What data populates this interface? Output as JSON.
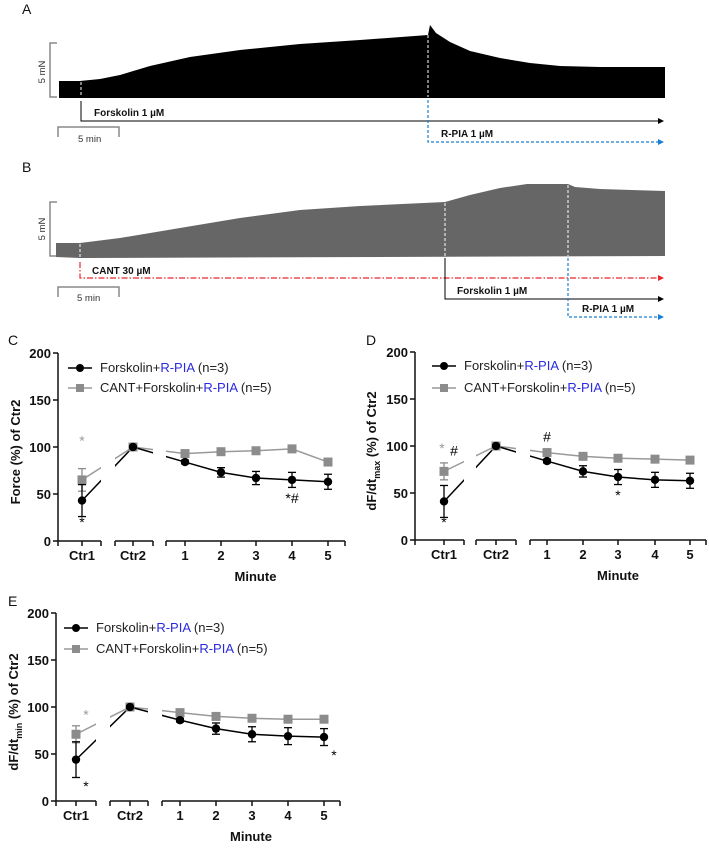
{
  "traces": {
    "A": {
      "panel_label": "A",
      "scale_force": "5 mN",
      "scale_time": "5 min",
      "forskolin_label": "Forskolin 1 µM",
      "rpia_label": "R-PIA 1 µM",
      "trace_color": "#000000"
    },
    "B": {
      "panel_label": "B",
      "scale_force": "5 mN",
      "scale_time": "5 min",
      "cant_label": "CANT 30 µM",
      "forskolin_label": "Forskolin 1 µM",
      "rpia_label": "R-PIA 1 µM",
      "trace_color": "#666666"
    },
    "colors": {
      "forskolin": "#000000",
      "rpia": "#1a7fd0",
      "cant": "#e8262a"
    }
  },
  "chart_data": [
    {
      "panel_label": "C",
      "type": "line",
      "ylabel_main": "Force (%) of Ctr2",
      "ylabel_sub": "",
      "ylabel_rest": "",
      "xlabel": "Minute",
      "categories": [
        "Ctr1",
        "Ctr2",
        "1",
        "2",
        "3",
        "4",
        "5"
      ],
      "yticks": [
        "0",
        "50",
        "100",
        "150",
        "200"
      ],
      "ylim": [
        0,
        200
      ],
      "series": [
        {
          "name_parts": [
            "Forskolin+",
            "R-PIA",
            " (n=3)"
          ],
          "color": "#000000",
          "marker": "circle",
          "values": [
            43,
            100,
            84,
            73,
            67,
            65,
            63
          ],
          "errors": [
            17,
            0,
            2,
            5,
            7,
            8,
            8
          ]
        },
        {
          "name_parts": [
            "CANT+Forskolin+",
            "R-PIA",
            " (n=5)"
          ],
          "color": "#8c8c8c",
          "marker": "square",
          "values": [
            65,
            100,
            93,
            95,
            96,
            98,
            84
          ],
          "errors": [
            12,
            0,
            2,
            2,
            2,
            2,
            3
          ]
        }
      ],
      "legend_highlight_color": "#2a2ae0",
      "annotations": [
        {
          "category": 0,
          "y": 107,
          "text": "*",
          "color": "#999999"
        },
        {
          "category": 0,
          "y": 20,
          "text": "*",
          "color": "#000000"
        },
        {
          "category": 5,
          "y": 46,
          "text": "*#",
          "color": "#000000"
        }
      ]
    },
    {
      "panel_label": "D",
      "type": "line",
      "ylabel_main": "dF/dt",
      "ylabel_sub": "max",
      "ylabel_rest": " (%) of Ctr2",
      "xlabel": "Minute",
      "categories": [
        "Ctr1",
        "Ctr2",
        "1",
        "2",
        "3",
        "4",
        "5"
      ],
      "yticks": [
        "0",
        "50",
        "100",
        "150",
        "200"
      ],
      "ylim": [
        0,
        200
      ],
      "series": [
        {
          "name_parts": [
            "Forskolin+",
            "R-PIA",
            " (n=3)"
          ],
          "color": "#000000",
          "marker": "circle",
          "values": [
            41,
            100,
            84,
            73,
            67,
            64,
            63
          ],
          "errors": [
            17,
            0,
            2,
            6,
            8,
            8,
            8
          ]
        },
        {
          "name_parts": [
            "CANT+Forskolin+",
            "R-PIA",
            " (n=5)"
          ],
          "color": "#8c8c8c",
          "marker": "square",
          "values": [
            73,
            100,
            93,
            89,
            87,
            86,
            85
          ],
          "errors": [
            9,
            0,
            2,
            2,
            2,
            2,
            2
          ]
        }
      ],
      "legend_highlight_color": "#2a2ae0",
      "annotations": [
        {
          "category": 0,
          "y": 98,
          "text": "*",
          "color": "#999999",
          "dx": -2
        },
        {
          "category": 0,
          "y": 95,
          "text": "#",
          "color": "#000000",
          "dx": 10
        },
        {
          "category": 0,
          "y": 19,
          "text": "*",
          "color": "#000000"
        },
        {
          "category": 2,
          "y": 110,
          "text": "#",
          "color": "#000000"
        },
        {
          "category": 4,
          "y": 48,
          "text": "*",
          "color": "#000000"
        }
      ]
    },
    {
      "panel_label": "E",
      "type": "line",
      "ylabel_main": "dF/dt",
      "ylabel_sub": "min",
      "ylabel_rest": " (%) of Ctr2",
      "xlabel": "Minute",
      "categories": [
        "Ctr1",
        "Ctr2",
        "1",
        "2",
        "3",
        "4",
        "5"
      ],
      "yticks": [
        "0",
        "50",
        "100",
        "150",
        "200"
      ],
      "ylim": [
        0,
        200
      ],
      "series": [
        {
          "name_parts": [
            "Forskolin+",
            "R-PIA",
            " (n=3)"
          ],
          "color": "#000000",
          "marker": "circle",
          "values": [
            44,
            100,
            86,
            77,
            71,
            69,
            68
          ],
          "errors": [
            19,
            0,
            2,
            6,
            8,
            9,
            9
          ]
        },
        {
          "name_parts": [
            "CANT+Forskolin+",
            "R-PIA",
            " (n=5)"
          ],
          "color": "#8c8c8c",
          "marker": "square",
          "values": [
            71,
            100,
            94,
            90,
            88,
            87,
            87
          ],
          "errors": [
            9,
            0,
            2,
            2,
            2,
            2,
            2
          ]
        }
      ],
      "legend_highlight_color": "#2a2ae0",
      "annotations": [
        {
          "category": 0,
          "y": 92,
          "text": "*",
          "color": "#999999",
          "dx": 10
        },
        {
          "category": 0,
          "y": 16,
          "text": "*",
          "color": "#000000",
          "dx": 10
        },
        {
          "category": 6,
          "y": 49,
          "text": "*",
          "color": "#000000",
          "dx": 10
        }
      ]
    }
  ]
}
